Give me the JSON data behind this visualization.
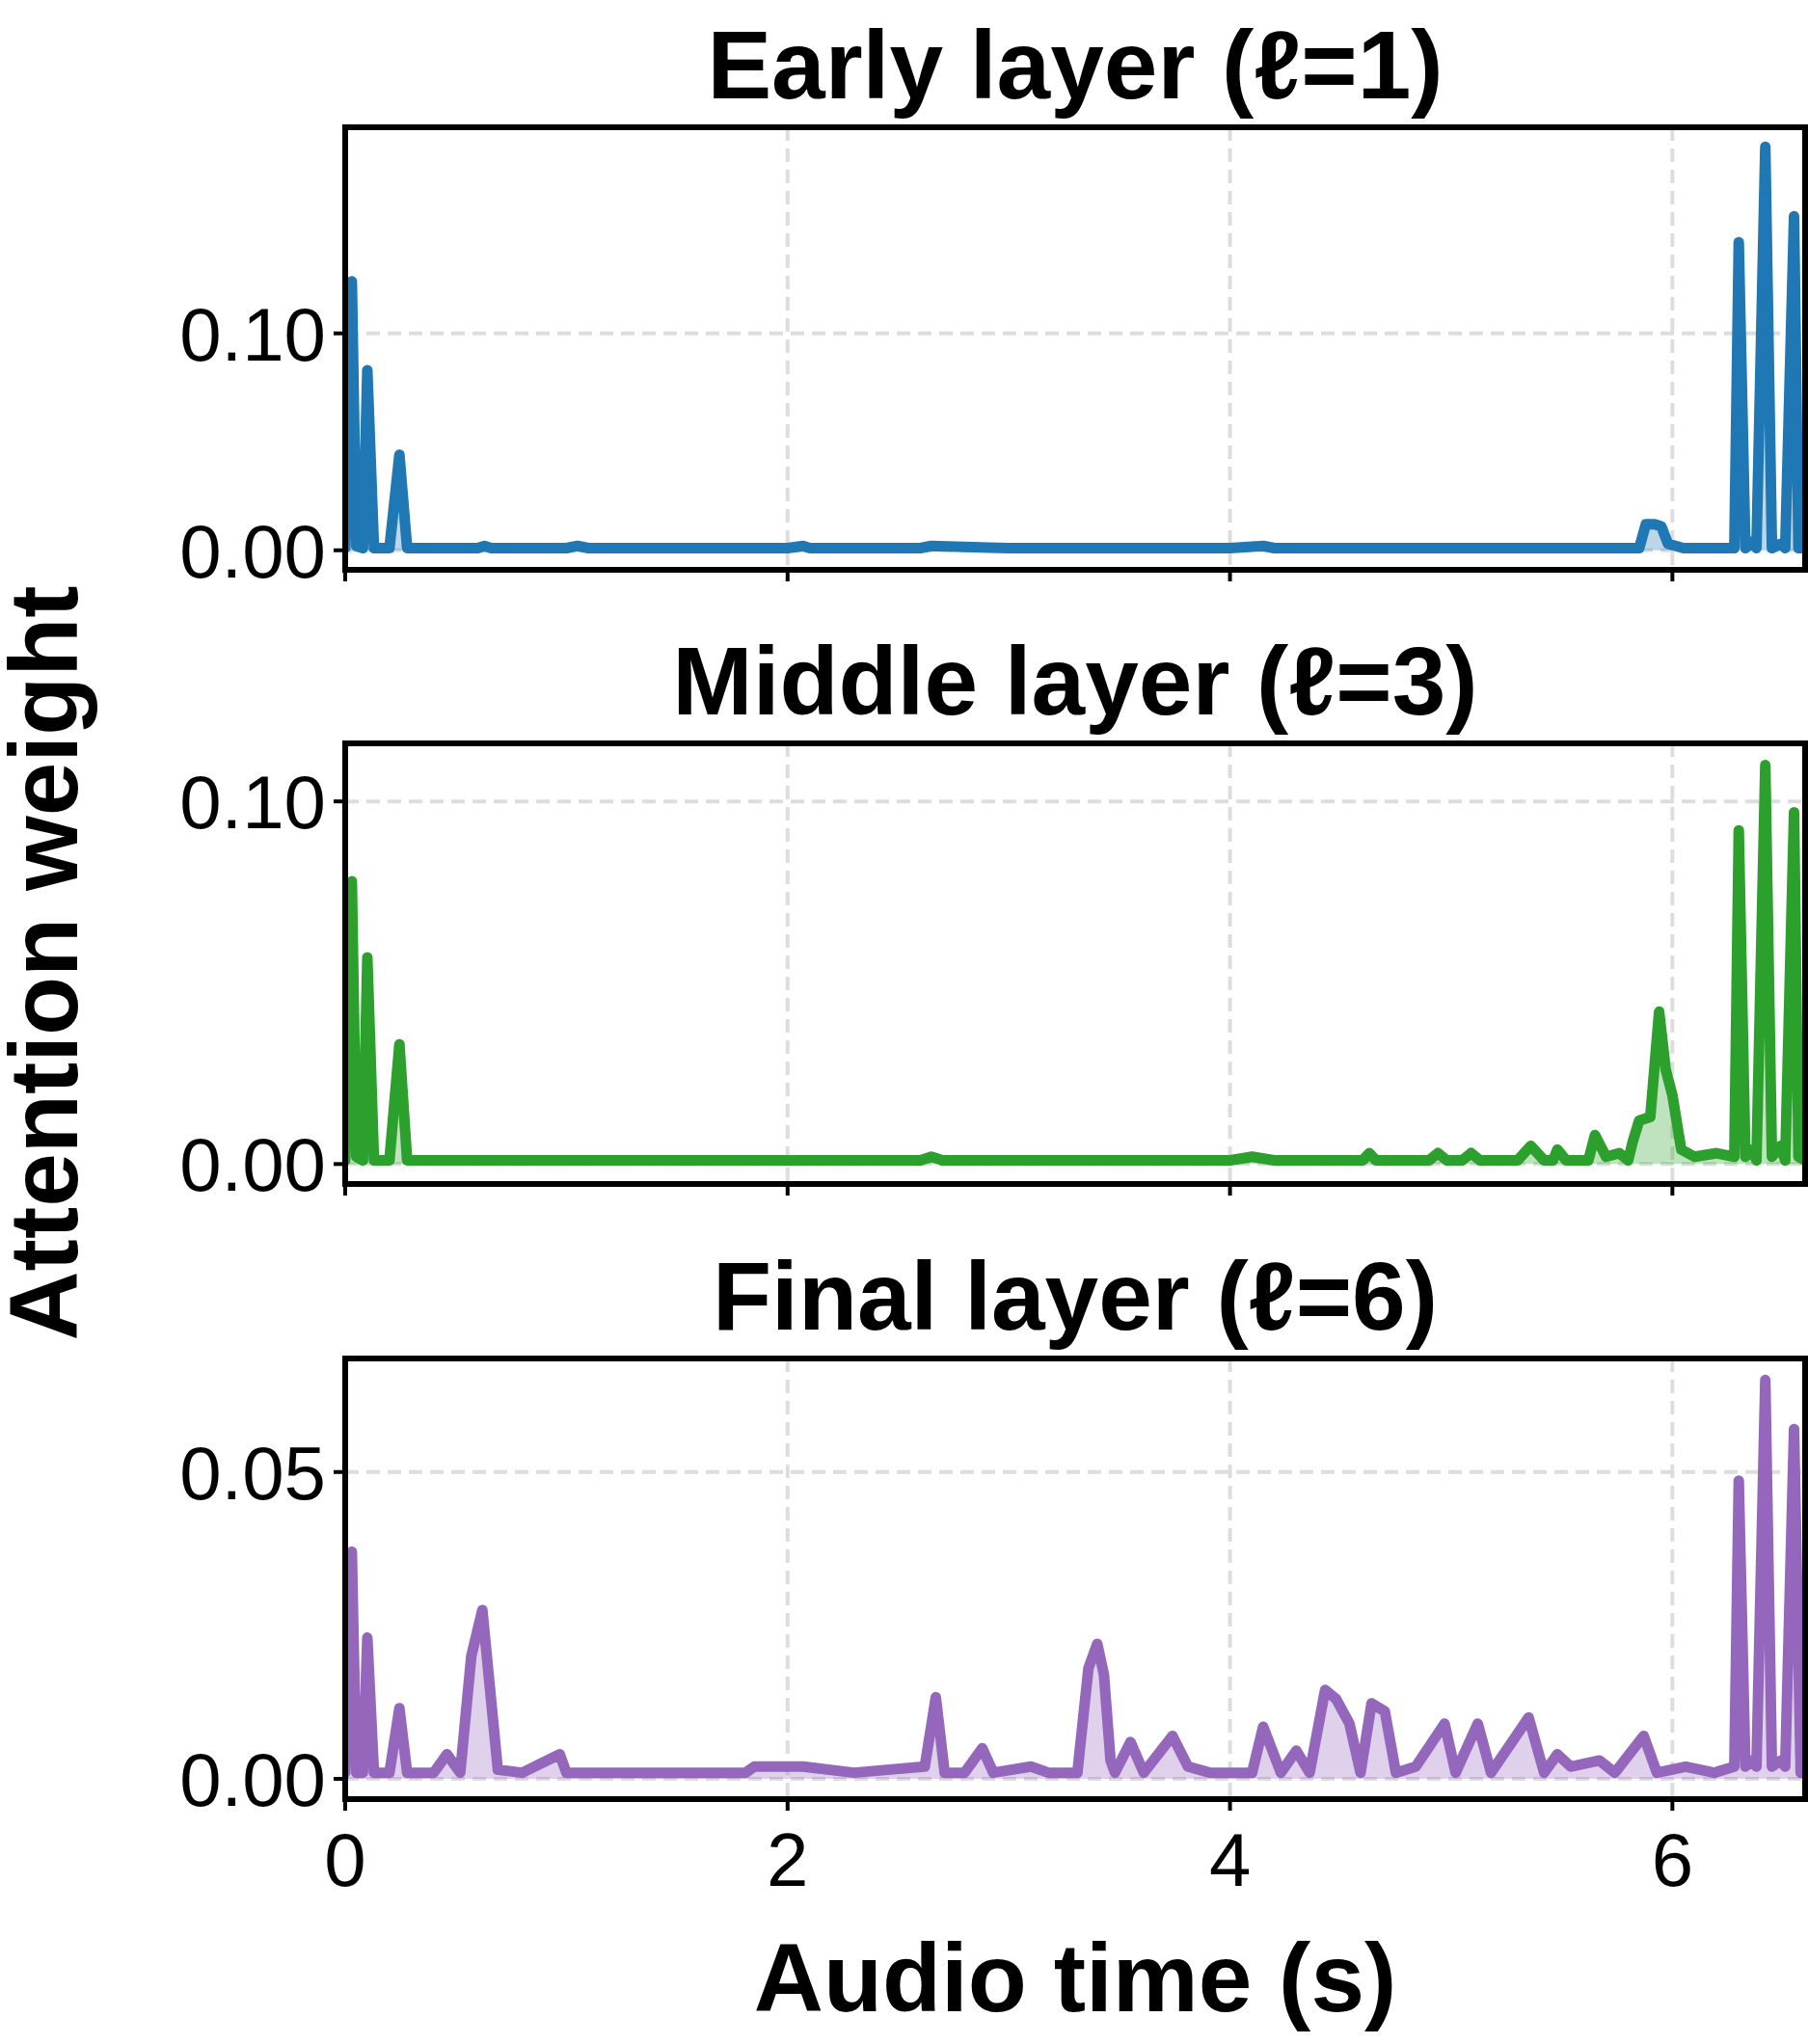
{
  "chart_data": [
    {
      "type": "area",
      "title": "Early layer (ℓ=1)",
      "xlim": [
        0,
        6.6
      ],
      "xticks": [
        0,
        2,
        4,
        6
      ],
      "ylim": [
        -0.009,
        0.195
      ],
      "yticks": [
        {
          "value": 0,
          "label": "0.00"
        },
        {
          "value": 0.1,
          "label": "0.10"
        }
      ],
      "grid": true,
      "tick_labels": "y",
      "series": [
        {
          "color": "#1f77b4",
          "x": [
            0,
            0.03,
            0.05,
            0.08,
            0.1,
            0.13,
            0.2,
            0.245,
            0.28,
            0.6,
            0.63,
            0.66,
            1,
            1.05,
            1.1,
            1.5,
            2,
            2.07,
            2.1,
            2.6,
            2.65,
            3,
            4,
            4.15,
            4.2,
            5,
            5.85,
            5.88,
            5.92,
            5.95,
            5.98,
            6.05,
            6.28,
            6.3,
            6.33,
            6.36,
            6.38,
            6.42,
            6.45,
            6.49,
            6.51,
            6.55,
            6.57,
            6.6
          ],
          "values": [
            0.001,
            0.124,
            0.002,
            0.001,
            0.083,
            0.001,
            0.001,
            0.044,
            0.001,
            0.001,
            0.002,
            0.001,
            0.001,
            0.002,
            0.001,
            0.001,
            0.001,
            0.002,
            0.001,
            0.001,
            0.002,
            0.001,
            0.001,
            0.002,
            0.001,
            0.001,
            0.001,
            0.012,
            0.012,
            0.011,
            0.003,
            0.001,
            0.001,
            0.142,
            0.001,
            0.004,
            0.001,
            0.186,
            0.001,
            0.003,
            0.001,
            0.154,
            0.001,
            0.001
          ]
        }
      ]
    },
    {
      "type": "area",
      "title": "Middle layer (ℓ=3)",
      "ylabel": "Attention weight",
      "xlim": [
        0,
        6.6
      ],
      "xticks": [
        0,
        2,
        4,
        6
      ],
      "ylim": [
        -0.0055,
        0.116
      ],
      "yticks": [
        {
          "value": 0,
          "label": "0.00"
        },
        {
          "value": 0.1,
          "label": "0.10"
        }
      ],
      "grid": true,
      "tick_labels": "y",
      "series": [
        {
          "color": "#2ca02c",
          "x": [
            0,
            0.03,
            0.05,
            0.08,
            0.1,
            0.13,
            0.2,
            0.245,
            0.28,
            1,
            2,
            2.6,
            2.65,
            2.7,
            3,
            4,
            4.1,
            4.2,
            4.6,
            4.63,
            4.66,
            4.9,
            4.94,
            4.98,
            5.05,
            5.09,
            5.13,
            5.3,
            5.36,
            5.42,
            5.46,
            5.48,
            5.52,
            5.62,
            5.65,
            5.7,
            5.76,
            5.8,
            5.82,
            5.85,
            5.9,
            5.94,
            5.97,
            6.0,
            6.04,
            6.1,
            6.2,
            6.28,
            6.3,
            6.33,
            6.36,
            6.38,
            6.42,
            6.45,
            6.49,
            6.51,
            6.55,
            6.57,
            6.6
          ],
          "values": [
            0.001,
            0.078,
            0.002,
            0.001,
            0.057,
            0.001,
            0.001,
            0.033,
            0.001,
            0.001,
            0.001,
            0.001,
            0.002,
            0.001,
            0.001,
            0.001,
            0.002,
            0.001,
            0.001,
            0.003,
            0.001,
            0.001,
            0.003,
            0.001,
            0.001,
            0.003,
            0.001,
            0.001,
            0.005,
            0.001,
            0.001,
            0.004,
            0.001,
            0.001,
            0.008,
            0.002,
            0.003,
            0.001,
            0.006,
            0.012,
            0.013,
            0.042,
            0.026,
            0.019,
            0.004,
            0.002,
            0.003,
            0.002,
            0.092,
            0.002,
            0.004,
            0.001,
            0.11,
            0.002,
            0.005,
            0.001,
            0.097,
            0.002,
            0.001
          ]
        }
      ]
    },
    {
      "type": "area",
      "title": "Final layer (ℓ=6)",
      "xlabel": "Audio time (s)",
      "xlim": [
        0,
        6.6
      ],
      "xticks": [
        0,
        2,
        4,
        6
      ],
      "ylim": [
        -0.0033,
        0.0685
      ],
      "yticks": [
        {
          "value": 0,
          "label": "0.00"
        },
        {
          "value": 0.05,
          "label": "0.05"
        }
      ],
      "grid": true,
      "series": [
        {
          "color": "#9467bd",
          "x": [
            0,
            0.03,
            0.05,
            0.08,
            0.1,
            0.13,
            0.2,
            0.245,
            0.28,
            0.4,
            0.46,
            0.52,
            0.57,
            0.62,
            0.69,
            0.8,
            0.97,
            1.0,
            1.5,
            1.81,
            1.85,
            2.0,
            2.07,
            2.3,
            2.62,
            2.67,
            2.71,
            2.8,
            2.88,
            2.93,
            3.1,
            3.18,
            3.31,
            3.36,
            3.4,
            3.43,
            3.46,
            3.48,
            3.55,
            3.61,
            3.74,
            3.81,
            3.91,
            4.1,
            4.15,
            4.23,
            4.3,
            4.36,
            4.43,
            4.48,
            4.54,
            4.59,
            4.64,
            4.7,
            4.75,
            4.84,
            4.97,
            5.02,
            5.12,
            5.18,
            5.35,
            5.42,
            5.48,
            5.54,
            5.67,
            5.74,
            5.87,
            5.93,
            6.06,
            6.19,
            6.28,
            6.3,
            6.33,
            6.36,
            6.38,
            6.42,
            6.45,
            6.49,
            6.51,
            6.55,
            6.58,
            6.6
          ],
          "values": [
            0.001,
            0.037,
            0.001,
            0.001,
            0.023,
            0.001,
            0.001,
            0.0115,
            0.001,
            0.001,
            0.004,
            0.001,
            0.02,
            0.0275,
            0.0015,
            0.001,
            0.004,
            0.001,
            0.001,
            0.001,
            0.002,
            0.002,
            0.002,
            0.001,
            0.002,
            0.0133,
            0.001,
            0.001,
            0.005,
            0.001,
            0.002,
            0.001,
            0.001,
            0.018,
            0.022,
            0.017,
            0.003,
            0.001,
            0.006,
            0.001,
            0.007,
            0.002,
            0.001,
            0.001,
            0.0085,
            0.001,
            0.0046,
            0.001,
            0.0145,
            0.013,
            0.009,
            0.001,
            0.0123,
            0.011,
            0.001,
            0.002,
            0.009,
            0.001,
            0.009,
            0.001,
            0.01,
            0.001,
            0.004,
            0.002,
            0.003,
            0.001,
            0.007,
            0.001,
            0.002,
            0.001,
            0.002,
            0.0486,
            0.002,
            0.003,
            0.002,
            0.065,
            0.002,
            0.003,
            0.002,
            0.057,
            0.001,
            0.001
          ]
        }
      ]
    }
  ]
}
